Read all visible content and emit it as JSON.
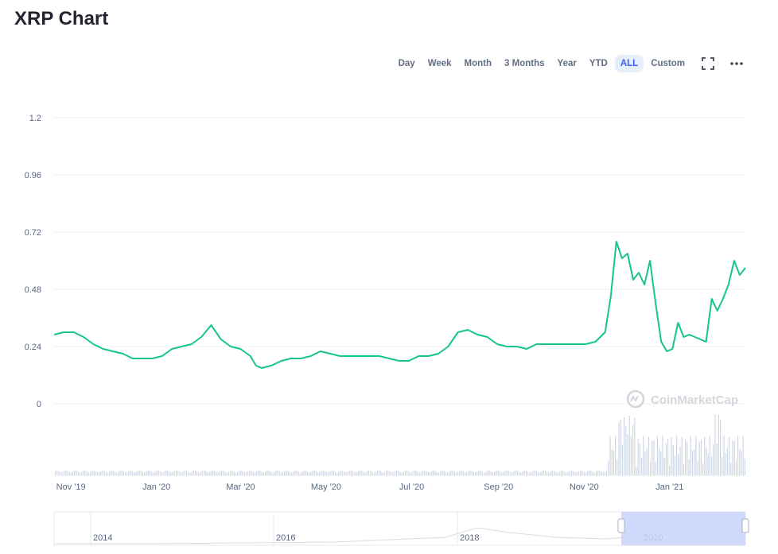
{
  "title": "XRP Chart",
  "toolbar": {
    "ranges": [
      "Day",
      "Week",
      "Month",
      "3 Months",
      "Year",
      "YTD",
      "ALL",
      "Custom"
    ],
    "active": "ALL",
    "fullscreen_icon": "fullscreen-icon",
    "more_icon": "more-options-icon"
  },
  "watermark": "CoinMarketCap",
  "colors": {
    "line": "#16c784",
    "grid": "#eff2f5",
    "volume": "#cfd6e4",
    "navigator": "#c9d4fb",
    "active_tab": "#3861fb"
  },
  "chart_data": {
    "type": "line",
    "title": "",
    "xlabel": "",
    "ylabel": "",
    "ylim": [
      0,
      1.2
    ],
    "y_ticks": [
      "1.2",
      "0.96",
      "0.72",
      "0.48",
      "0.24",
      "0"
    ],
    "x_ticks": [
      "Nov '19",
      "Jan '20",
      "Mar '20",
      "May '20",
      "Jul '20",
      "Sep '20",
      "Nov '20",
      "Jan '21"
    ],
    "navigator_ticks": [
      "2014",
      "2016",
      "2018",
      "2020"
    ],
    "grid": true,
    "series": [
      {
        "x": [
          "2019-10-20",
          "2019-10-27",
          "2019-11-03",
          "2019-11-10",
          "2019-11-17",
          "2019-11-24",
          "2019-12-01",
          "2019-12-08",
          "2019-12-15",
          "2019-12-22",
          "2019-12-29",
          "2020-01-05",
          "2020-01-12",
          "2020-01-19",
          "2020-01-26",
          "2020-02-02",
          "2020-02-09",
          "2020-02-16",
          "2020-02-23",
          "2020-03-01",
          "2020-03-08",
          "2020-03-12",
          "2020-03-16",
          "2020-03-23",
          "2020-03-30",
          "2020-04-06",
          "2020-04-13",
          "2020-04-20",
          "2020-04-27",
          "2020-05-04",
          "2020-05-11",
          "2020-05-18",
          "2020-05-25",
          "2020-06-01",
          "2020-06-08",
          "2020-06-15",
          "2020-06-22",
          "2020-06-29",
          "2020-07-06",
          "2020-07-13",
          "2020-07-20",
          "2020-07-27",
          "2020-08-03",
          "2020-08-10",
          "2020-08-17",
          "2020-08-24",
          "2020-08-31",
          "2020-09-07",
          "2020-09-14",
          "2020-09-21",
          "2020-09-28",
          "2020-10-05",
          "2020-10-12",
          "2020-10-19",
          "2020-10-26",
          "2020-11-02",
          "2020-11-09",
          "2020-11-16",
          "2020-11-20",
          "2020-11-24",
          "2020-11-28",
          "2020-12-02",
          "2020-12-06",
          "2020-12-10",
          "2020-12-14",
          "2020-12-18",
          "2020-12-22",
          "2020-12-26",
          "2020-12-30",
          "2021-01-03",
          "2021-01-07",
          "2021-01-11",
          "2021-01-15",
          "2021-01-19",
          "2021-01-23",
          "2021-01-27",
          "2021-01-31",
          "2021-02-04",
          "2021-02-08",
          "2021-02-12",
          "2021-02-16",
          "2021-02-20",
          "2021-02-24"
        ],
        "y": [
          0.29,
          0.3,
          0.3,
          0.28,
          0.25,
          0.23,
          0.22,
          0.21,
          0.19,
          0.19,
          0.19,
          0.2,
          0.23,
          0.24,
          0.25,
          0.28,
          0.33,
          0.27,
          0.24,
          0.23,
          0.2,
          0.16,
          0.15,
          0.16,
          0.18,
          0.19,
          0.19,
          0.2,
          0.22,
          0.21,
          0.2,
          0.2,
          0.2,
          0.2,
          0.2,
          0.19,
          0.18,
          0.18,
          0.2,
          0.2,
          0.21,
          0.24,
          0.3,
          0.31,
          0.29,
          0.28,
          0.25,
          0.24,
          0.24,
          0.23,
          0.25,
          0.25,
          0.25,
          0.25,
          0.25,
          0.25,
          0.26,
          0.3,
          0.45,
          0.68,
          0.61,
          0.63,
          0.52,
          0.55,
          0.5,
          0.6,
          0.42,
          0.26,
          0.22,
          0.23,
          0.34,
          0.28,
          0.29,
          0.28,
          0.27,
          0.26,
          0.44,
          0.39,
          0.44,
          0.5,
          0.6,
          0.54,
          0.57
        ]
      }
    ]
  }
}
